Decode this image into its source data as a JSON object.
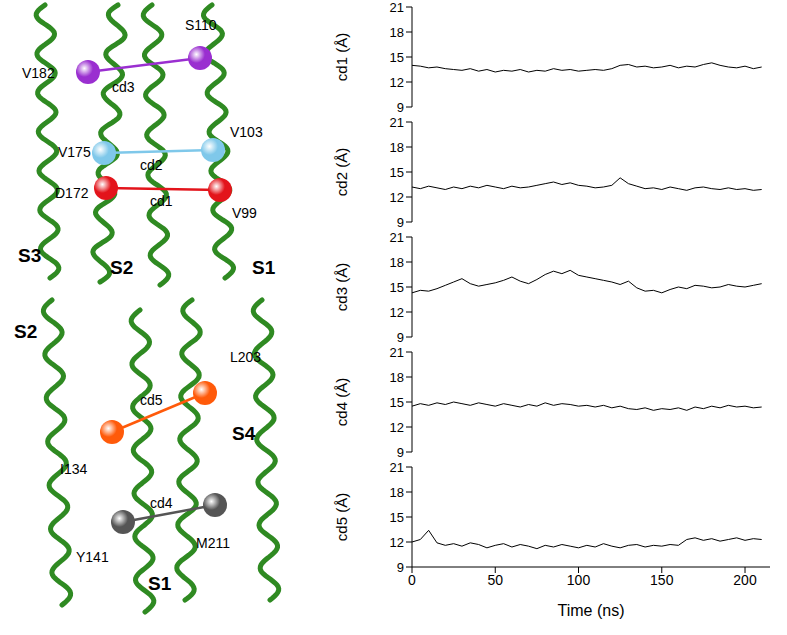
{
  "chart_data": [
    {
      "type": "line",
      "y_label": "cd1 (Å)",
      "color": "#000000",
      "xlim": [
        0,
        215
      ],
      "xticks": [
        0,
        50,
        100,
        150,
        200
      ],
      "ylim": [
        9,
        21
      ],
      "yticks": [
        9,
        12,
        15,
        18,
        21
      ],
      "tick_labels": "y",
      "x": [
        0,
        5,
        10,
        15,
        20,
        25,
        30,
        35,
        40,
        45,
        50,
        55,
        60,
        65,
        70,
        75,
        80,
        85,
        90,
        95,
        100,
        105,
        110,
        115,
        120,
        125,
        130,
        135,
        140,
        145,
        150,
        155,
        160,
        165,
        170,
        175,
        180,
        185,
        190,
        195,
        200,
        205,
        210
      ],
      "values": [
        14.0,
        13.9,
        13.7,
        13.8,
        13.6,
        13.5,
        13.4,
        13.6,
        13.3,
        13.5,
        13.2,
        13.4,
        13.3,
        13.5,
        13.2,
        13.4,
        13.3,
        13.6,
        13.4,
        13.5,
        13.3,
        13.4,
        13.5,
        13.4,
        13.6,
        14.0,
        14.1,
        13.8,
        13.9,
        13.7,
        13.8,
        14.0,
        13.7,
        13.9,
        13.8,
        14.1,
        14.3,
        14.0,
        13.8,
        13.7,
        13.9,
        13.6,
        13.8
      ]
    },
    {
      "type": "line",
      "y_label": "cd2 (Å)",
      "color": "#000000",
      "xlim": [
        0,
        215
      ],
      "xticks": [
        0,
        50,
        100,
        150,
        200
      ],
      "ylim": [
        9,
        21
      ],
      "yticks": [
        9,
        12,
        15,
        18,
        21
      ],
      "tick_labels": "y",
      "x": [
        0,
        5,
        10,
        15,
        20,
        25,
        30,
        35,
        40,
        45,
        50,
        55,
        60,
        65,
        70,
        75,
        80,
        85,
        90,
        95,
        100,
        105,
        110,
        115,
        120,
        125,
        130,
        135,
        140,
        145,
        150,
        155,
        160,
        165,
        170,
        175,
        180,
        185,
        190,
        195,
        200,
        205,
        210
      ],
      "values": [
        13.2,
        13.0,
        13.3,
        13.1,
        12.9,
        13.2,
        13.0,
        13.3,
        13.1,
        13.4,
        13.2,
        13.0,
        13.3,
        13.1,
        13.2,
        13.4,
        13.6,
        13.8,
        13.5,
        13.7,
        13.4,
        13.3,
        13.1,
        13.2,
        13.4,
        14.3,
        13.6,
        13.3,
        13.0,
        13.1,
        12.9,
        13.2,
        13.0,
        12.8,
        13.1,
        13.2,
        13.0,
        12.9,
        13.1,
        12.9,
        13.0,
        12.8,
        12.9
      ]
    },
    {
      "type": "line",
      "y_label": "cd3 (Å)",
      "color": "#000000",
      "xlim": [
        0,
        215
      ],
      "xticks": [
        0,
        50,
        100,
        150,
        200
      ],
      "ylim": [
        9,
        21
      ],
      "yticks": [
        9,
        12,
        15,
        18,
        21
      ],
      "tick_labels": "y",
      "x": [
        0,
        5,
        10,
        15,
        20,
        25,
        30,
        35,
        40,
        45,
        50,
        55,
        60,
        65,
        70,
        75,
        80,
        85,
        90,
        95,
        100,
        105,
        110,
        115,
        120,
        125,
        130,
        135,
        140,
        145,
        150,
        155,
        160,
        165,
        170,
        175,
        180,
        185,
        190,
        195,
        200,
        205,
        210
      ],
      "values": [
        14.3,
        14.6,
        14.5,
        14.8,
        15.2,
        15.6,
        16.0,
        15.4,
        15.1,
        15.3,
        15.5,
        15.8,
        16.2,
        15.7,
        15.4,
        15.9,
        16.5,
        16.9,
        16.6,
        17.0,
        16.4,
        16.2,
        16.0,
        15.8,
        15.6,
        15.3,
        15.7,
        14.9,
        14.5,
        14.6,
        14.3,
        14.7,
        15.0,
        14.8,
        15.2,
        15.1,
        14.9,
        15.0,
        15.3,
        15.1,
        15.0,
        15.2,
        15.4
      ]
    },
    {
      "type": "line",
      "y_label": "cd4 (Å)",
      "color": "#000000",
      "xlim": [
        0,
        215
      ],
      "xticks": [
        0,
        50,
        100,
        150,
        200
      ],
      "ylim": [
        9,
        21
      ],
      "yticks": [
        9,
        12,
        15,
        18,
        21
      ],
      "tick_labels": "y",
      "x": [
        0,
        5,
        10,
        15,
        20,
        25,
        30,
        35,
        40,
        45,
        50,
        55,
        60,
        65,
        70,
        75,
        80,
        85,
        90,
        95,
        100,
        105,
        110,
        115,
        120,
        125,
        130,
        135,
        140,
        145,
        150,
        155,
        160,
        165,
        170,
        175,
        180,
        185,
        190,
        195,
        200,
        205,
        210
      ],
      "values": [
        14.5,
        14.8,
        14.6,
        14.9,
        14.7,
        15.0,
        14.8,
        14.6,
        14.9,
        14.7,
        14.5,
        14.8,
        14.6,
        14.4,
        14.7,
        14.5,
        14.9,
        14.6,
        14.8,
        14.7,
        14.5,
        14.6,
        14.4,
        14.6,
        14.3,
        14.5,
        14.2,
        14.1,
        14.3,
        14.0,
        14.2,
        14.1,
        14.3,
        14.0,
        14.4,
        14.2,
        14.5,
        14.3,
        14.6,
        14.4,
        14.5,
        14.3,
        14.4
      ]
    },
    {
      "type": "line",
      "y_label": "cd5 (Å)",
      "x_label": "Time (ns)",
      "color": "#000000",
      "xlim": [
        0,
        215
      ],
      "xticks": [
        0,
        50,
        100,
        150,
        200
      ],
      "ylim": [
        9,
        21
      ],
      "yticks": [
        9,
        12,
        15,
        18,
        21
      ],
      "tick_labels": true,
      "x": [
        0,
        5,
        10,
        15,
        20,
        25,
        30,
        35,
        40,
        45,
        50,
        55,
        60,
        65,
        70,
        75,
        80,
        85,
        90,
        95,
        100,
        105,
        110,
        115,
        120,
        125,
        130,
        135,
        140,
        145,
        150,
        155,
        160,
        165,
        170,
        175,
        180,
        185,
        190,
        195,
        200,
        205,
        210
      ],
      "values": [
        12.0,
        12.3,
        13.4,
        11.9,
        11.6,
        11.8,
        11.5,
        11.9,
        11.7,
        11.3,
        11.6,
        11.8,
        11.4,
        11.7,
        11.5,
        11.2,
        11.6,
        11.4,
        11.7,
        11.5,
        11.3,
        11.6,
        11.4,
        11.8,
        11.5,
        11.3,
        11.6,
        11.7,
        11.4,
        11.6,
        11.5,
        11.7,
        11.6,
        12.3,
        12.5,
        12.2,
        12.4,
        12.1,
        12.3,
        12.5,
        12.2,
        12.4,
        12.3
      ]
    }
  ],
  "diagram": {
    "panels": [
      {
        "helices": [
          {
            "label": "S3"
          },
          {
            "label": "S2"
          },
          {
            "label": "S1"
          }
        ],
        "distances": [
          {
            "label": "cd3",
            "from": "V182",
            "to": "S110",
            "color": "#9a2fd0"
          },
          {
            "label": "cd2",
            "from": "V175",
            "to": "V103",
            "color": "#7fc8ea"
          },
          {
            "label": "cd1",
            "from": "D172",
            "to": "V99",
            "color": "#e3141b"
          }
        ]
      },
      {
        "helices": [
          {
            "label": "S2"
          },
          {
            "label": "S4"
          },
          {
            "label": "S1"
          }
        ],
        "distances": [
          {
            "label": "cd5",
            "from": "I134",
            "to": "L203",
            "color": "#ff5a0a"
          },
          {
            "label": "cd4",
            "from": "Y141",
            "to": "M211",
            "color": "#555555"
          }
        ]
      }
    ]
  }
}
